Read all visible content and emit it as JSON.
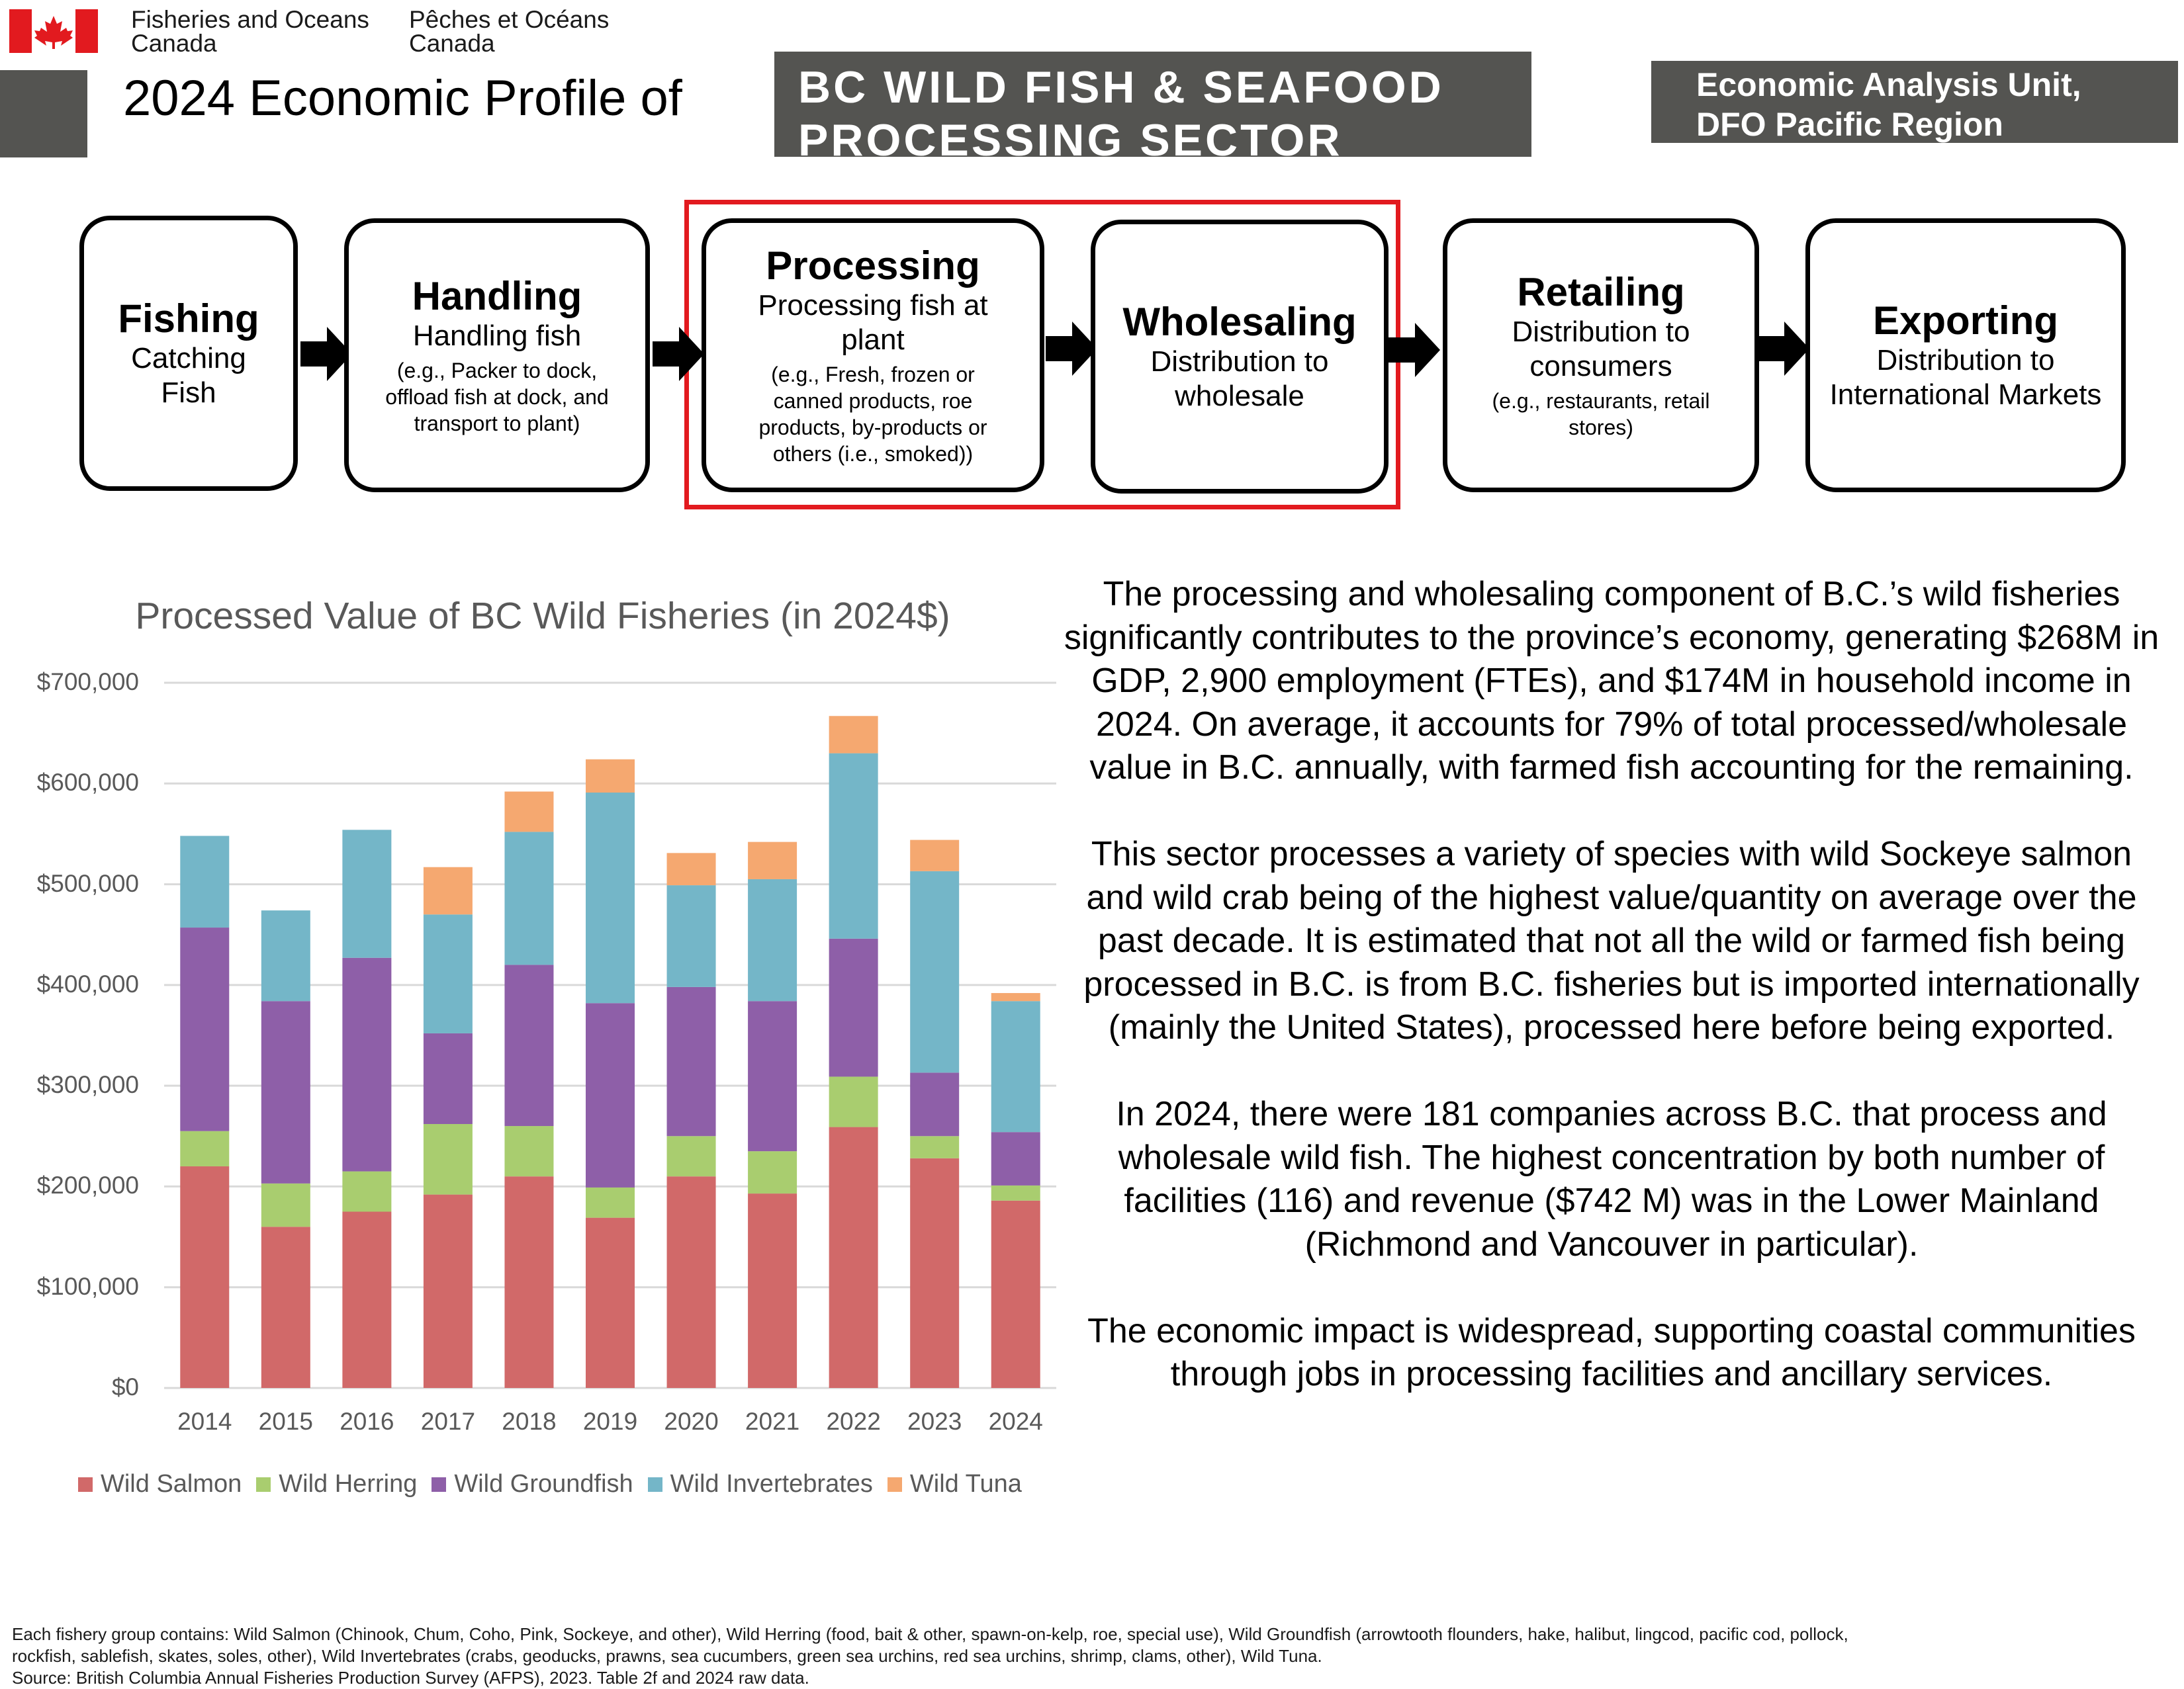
{
  "header": {
    "org_en_line1": "Fisheries and Oceans",
    "org_en_line2": "Canada",
    "org_fr_line1": "Pêches et Océans",
    "org_fr_line2": "Canada",
    "title": "2024 Economic Profile of",
    "sector_title": "BC WILD FISH & SEAFOOD\nPROCESSING SECTOR",
    "unit_title": "Economic Analysis Unit,\nDFO Pacific Region"
  },
  "flow": [
    {
      "title": "Fishing",
      "desc": "Catching\nFish",
      "note": ""
    },
    {
      "title": "Handling",
      "desc": "Handling fish",
      "note": "(e.g., Packer to dock,\noffload fish at dock, and\ntransport to plant)"
    },
    {
      "title": "Processing",
      "desc": "Processing fish at\nplant",
      "note": "(e.g., Fresh, frozen or\ncanned products, roe\nproducts, by-products or\nothers (i.e., smoked))"
    },
    {
      "title": "Wholesaling",
      "desc": "Distribution to\nwholesale",
      "note": ""
    },
    {
      "title": "Retailing",
      "desc": "Distribution to\nconsumers",
      "note": "(e.g., restaurants, retail\nstores)"
    },
    {
      "title": "Exporting",
      "desc": "Distribution to\nInternational Markets",
      "note": ""
    }
  ],
  "colors": {
    "header_gray": "#545451",
    "highlight": "#e21a1f",
    "flag_red": "#e21a1f"
  },
  "chart_data": {
    "type": "bar",
    "stacked": true,
    "title": "Processed Value of BC Wild Fisheries (in 2024$)",
    "categories": [
      "2014",
      "2015",
      "2016",
      "2017",
      "2018",
      "2019",
      "2020",
      "2021",
      "2022",
      "2023",
      "2024"
    ],
    "ylim": [
      0,
      700000
    ],
    "yticks": [
      0,
      100000,
      200000,
      300000,
      400000,
      500000,
      600000,
      700000
    ],
    "ytick_labels": [
      "$0",
      "$100,000",
      "$200,000",
      "$300,000",
      "$400,000",
      "$500,000",
      "$600,000",
      "$700,000"
    ],
    "grid": true,
    "legend_position": "bottom",
    "series": [
      {
        "name": "Wild Salmon",
        "color": "#d16969",
        "values": [
          220000,
          160000,
          175000,
          192000,
          210000,
          169000,
          210000,
          193000,
          259000,
          228000,
          186000
        ]
      },
      {
        "name": "Wild Herring",
        "color": "#a9cd6f",
        "values": [
          35000,
          43000,
          40000,
          70000,
          50000,
          30000,
          40000,
          42000,
          50000,
          22000,
          15000
        ]
      },
      {
        "name": "Wild Groundfish",
        "color": "#8e5fa8",
        "values": [
          202000,
          181000,
          212000,
          90000,
          160000,
          183000,
          148000,
          149000,
          137000,
          63000,
          53000
        ]
      },
      {
        "name": "Wild Invertebrates",
        "color": "#74b6c8",
        "values": [
          91000,
          90000,
          127000,
          118000,
          132000,
          209000,
          101000,
          121000,
          184000,
          200000,
          130000
        ]
      },
      {
        "name": "Wild Tuna",
        "color": "#f5a870",
        "values": [
          0,
          0,
          0,
          47000,
          40000,
          33000,
          32000,
          37000,
          37000,
          31000,
          8000
        ]
      }
    ]
  },
  "body_paragraphs": [
    "The processing and wholesaling component of B.C.’s wild fisheries significantly contributes to the province’s economy, generating $268M in GDP, 2,900 employment (FTEs), and $174M in household income in 2024. On average, it accounts for 79% of total processed/wholesale value in B.C. annually, with farmed fish accounting for the remaining.",
    "This sector processes a variety of species with wild Sockeye salmon and wild crab being of the highest value/quantity on average over the past decade. It is estimated that not all the wild or farmed fish being processed in B.C. is from B.C. fisheries but is imported internationally (mainly the United States), processed here before being exported.",
    "In 2024, there were 181 companies across B.C. that process and wholesale wild fish. The highest concentration by both number of facilities (116) and revenue ($742 M) was in the Lower Mainland (Richmond and Vancouver in particular).",
    "The economic impact is widespread, supporting coastal communities through jobs in processing facilities and ancillary services."
  ],
  "footnote": {
    "line1": "Each fishery group contains: Wild Salmon (Chinook, Chum, Coho, Pink, Sockeye, and other), Wild Herring (food, bait & other, spawn-on-kelp, roe, special use), Wild Groundfish (arrowtooth flounders, hake, halibut, lingcod, pacific cod, pollock,",
    "line2": "rockfish, sablefish, skates, soles, other), Wild Invertebrates (crabs, geoducks, prawns, sea cucumbers, green sea urchins, red sea urchins, shrimp, clams, other), Wild Tuna.",
    "line3": "Source: British Columbia Annual Fisheries Production Survey (AFPS), 2023. Table 2f and 2024 raw data."
  }
}
